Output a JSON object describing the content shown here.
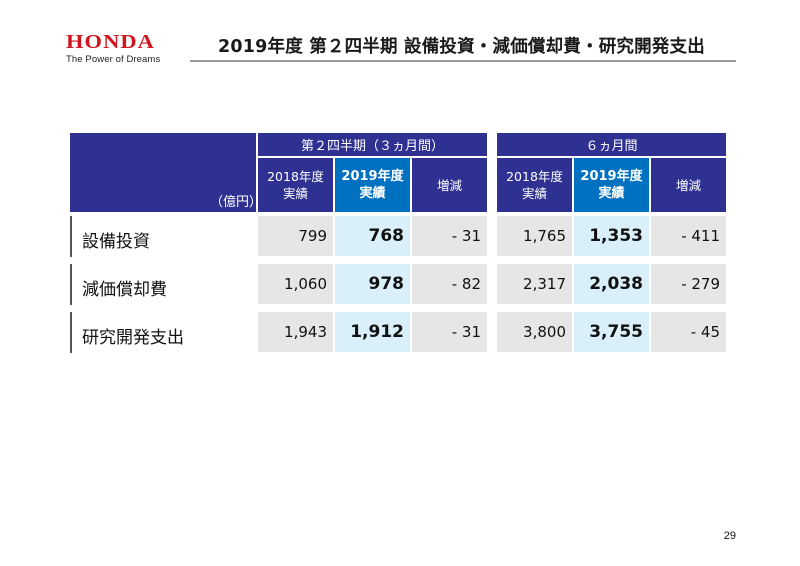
{
  "brand": {
    "logo_text": "HONDA",
    "tagline": "The Power of Dreams",
    "color": "#d2141e"
  },
  "title": "2019年度 第２四半期 設備投資・減価償却費・研究開発支出",
  "table": {
    "unit": "（億円）",
    "periods": [
      "第２四半期（３ヵ月間）",
      "６ヵ月間"
    ],
    "columns": [
      [
        "2018年度\n実績",
        "2019年度\n実績",
        "増減"
      ],
      [
        "2018年度\n実績",
        "2019年度\n実績",
        "増減"
      ]
    ],
    "rows": [
      {
        "label": "設備投資",
        "q2": [
          "799",
          "768",
          "- 31"
        ],
        "h1": [
          "1,765",
          "1,353",
          "- 411"
        ]
      },
      {
        "label": "減価償却費",
        "q2": [
          "1,060",
          "978",
          "- 82"
        ],
        "h1": [
          "2,317",
          "2,038",
          "- 279"
        ]
      },
      {
        "label": "研究開発支出",
        "q2": [
          "1,943",
          "1,912",
          "- 31"
        ],
        "h1": [
          "3,800",
          "3,755",
          "- 45"
        ]
      }
    ],
    "colors": {
      "header": "#2e3192",
      "current_header": "#0070c0",
      "current_cell": "#d9f0fb",
      "cell": "#e6e6e6"
    }
  },
  "page_number": "29"
}
